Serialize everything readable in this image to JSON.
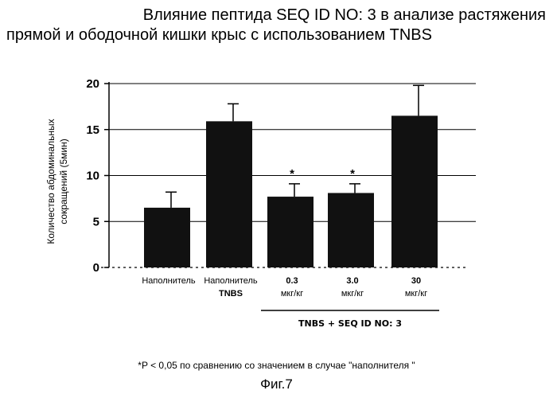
{
  "page": {
    "title_line1": "Влияние пептида SEQ ID NO: 3 в анализе растяжения",
    "title_line2": "прямой и ободочной кишки крыс с использованием TNBS",
    "group_label": "TNBS + SEQ ID NO: 3",
    "footnote": "*P < 0,05 по сравнению со значением в случае \"наполнителя \"",
    "figure_label": "Фиг.7"
  },
  "chart_data": {
    "type": "bar",
    "ylabel_line1": "Количество абдоминальных",
    "ylabel_line2": "сокращений (5мин)",
    "ylim": [
      0,
      20
    ],
    "yticks": [
      "0",
      "5",
      "10",
      "15",
      "20"
    ],
    "grid": true,
    "categories": [
      {
        "line1": "Наполнитель",
        "line2": ""
      },
      {
        "line1": "Наполнитель",
        "line2": "TNBS"
      },
      {
        "line1": "0.3",
        "line2": "мкг/кг"
      },
      {
        "line1": "3.0",
        "line2": "мкг/кг"
      },
      {
        "line1": "30",
        "line2": "мкг/кг"
      }
    ],
    "values": [
      6.5,
      15.9,
      7.7,
      8.1,
      16.5
    ],
    "errors": [
      1.7,
      1.9,
      1.4,
      1.0,
      3.3
    ],
    "significance": [
      "",
      "",
      "*",
      "*",
      ""
    ],
    "bar_color": "#111111"
  }
}
